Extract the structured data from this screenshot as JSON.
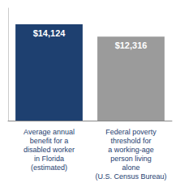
{
  "chart_data": {
    "type": "bar",
    "categories": [
      "Average annual\nbenefit for a\ndisabled worker\nin Florida\n(estimated)",
      "Federal poverty\nthreshold for\na working-age\nperson living\nalone\n(U.S. Census Bureau)"
    ],
    "values": [
      14124,
      12316
    ],
    "value_labels": [
      "$14,124",
      "$12,316"
    ],
    "colors": [
      "#1e4070",
      "#9b9b9b"
    ],
    "ylim": [
      0,
      16500
    ],
    "data_labels": true,
    "tick_labels": "x",
    "grid": false
  }
}
